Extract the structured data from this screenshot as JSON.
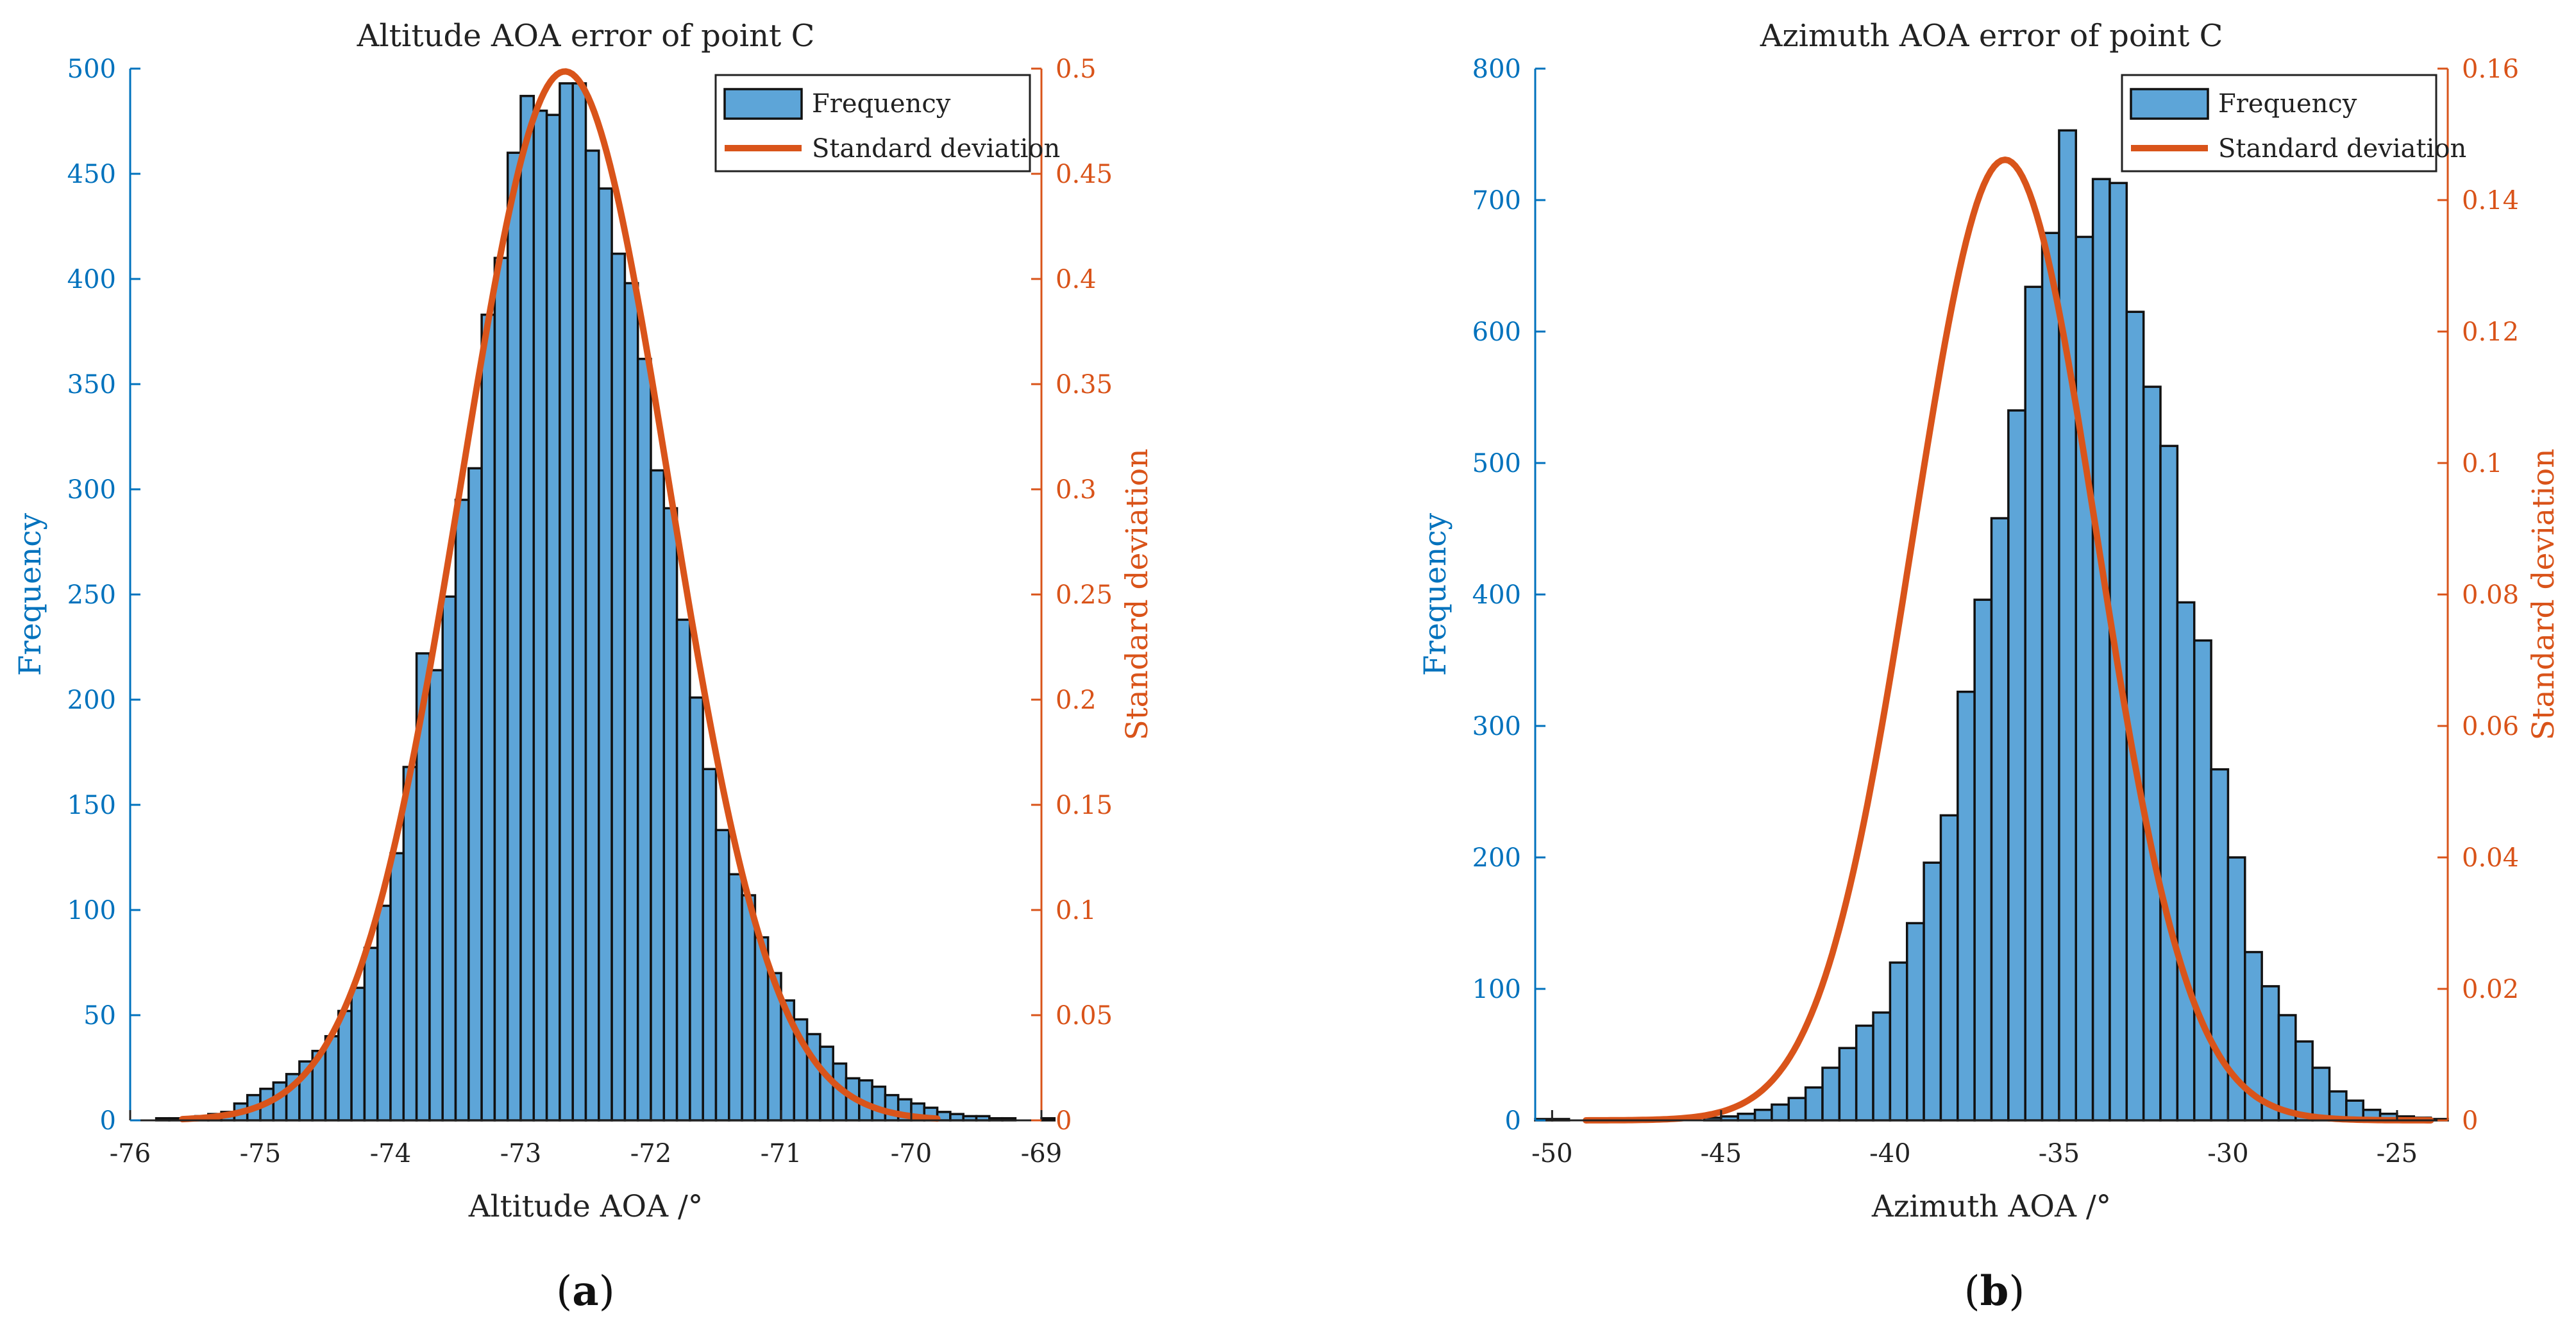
{
  "colors": {
    "bar_fill": "#5DA5D8",
    "bar_edge": "#111111",
    "line": "#D9541A",
    "left_axis": "#0072BD",
    "right_axis": "#D95319",
    "text": "#222222"
  },
  "chart_data": [
    {
      "panel_label": "a",
      "type": "bar",
      "title": "Altitude AOA error of point C",
      "xlabel": "Altitude AOA /°",
      "ylabel_left": "Frequency",
      "ylabel_right": "Standard deviation",
      "xlim": [
        -76,
        -69
      ],
      "ylim_left": [
        0,
        500
      ],
      "ylim_right": [
        0,
        0.5
      ],
      "xticks": [
        -76,
        -75,
        -74,
        -73,
        -72,
        -71,
        -70,
        -69
      ],
      "xtick_labels": [
        "-76",
        "-75",
        "-74",
        "-73",
        "-72",
        "-71",
        "-70",
        "-69"
      ],
      "yticks_left": [
        0,
        50,
        100,
        150,
        200,
        250,
        300,
        350,
        400,
        450,
        500
      ],
      "ytick_labels_left": [
        "0",
        "50",
        "100",
        "150",
        "200",
        "250",
        "300",
        "350",
        "400",
        "450",
        "500"
      ],
      "yticks_right": [
        0,
        0.05,
        0.1,
        0.15,
        0.2,
        0.25,
        0.3,
        0.35,
        0.4,
        0.45,
        0.5
      ],
      "ytick_labels_right": [
        "0",
        "0.05",
        "0.1",
        "0.15",
        "0.2",
        "0.25",
        "0.3",
        "0.35",
        "0.4",
        "0.45",
        "0.5"
      ],
      "legend": {
        "position": "top-right",
        "entries": [
          "Frequency",
          "Standard deviation"
        ]
      },
      "bins": {
        "start": -75.8,
        "width": 0.1,
        "counts": [
          1,
          1,
          1,
          2,
          3,
          4,
          8,
          12,
          15,
          18,
          22,
          28,
          33,
          40,
          52,
          63,
          82,
          102,
          127,
          168,
          222,
          214,
          249,
          295,
          310,
          383,
          410,
          460,
          487,
          480,
          478,
          493,
          493,
          461,
          443,
          412,
          398,
          362,
          309,
          291,
          238,
          201,
          167,
          138,
          117,
          107,
          87,
          70,
          57,
          48,
          41,
          35,
          27,
          20,
          19,
          16,
          12,
          10,
          8,
          6,
          4,
          3,
          2,
          2,
          1,
          1,
          0,
          0,
          1,
          0
        ]
      },
      "fit_line": {
        "name": "Standard deviation",
        "mean": -72.66,
        "sigma": 0.8,
        "x_range": [
          -75.6,
          -69.8
        ]
      }
    },
    {
      "panel_label": "b",
      "type": "bar",
      "title": "Azimuth AOA error of point C",
      "xlabel": "Azimuth AOA /°",
      "ylabel_left": "Frequency",
      "ylabel_right": "Standard deviation",
      "xlim": [
        -50.5,
        -23.5
      ],
      "ylim_left": [
        0,
        800
      ],
      "ylim_right": [
        0,
        0.16
      ],
      "xticks": [
        -50,
        -45,
        -40,
        -35,
        -30,
        -25
      ],
      "xtick_labels": [
        "-50",
        "-45",
        "-40",
        "-35",
        "-30",
        "-25"
      ],
      "yticks_left": [
        0,
        100,
        200,
        300,
        400,
        500,
        600,
        700,
        800
      ],
      "ytick_labels_left": [
        "0",
        "100",
        "200",
        "300",
        "400",
        "500",
        "600",
        "700",
        "800"
      ],
      "yticks_right": [
        0,
        0.02,
        0.04,
        0.06,
        0.08,
        0.1,
        0.12,
        0.14,
        0.16
      ],
      "ytick_labels_right": [
        "0",
        "0.02",
        "0.04",
        "0.06",
        "0.08",
        "0.1",
        "0.12",
        "0.14",
        "0.16"
      ],
      "legend": {
        "position": "top-right",
        "entries": [
          "Frequency",
          "Standard deviation"
        ]
      },
      "bins": {
        "start": -50.5,
        "width": 0.5,
        "counts": [
          1,
          1,
          0,
          0,
          0,
          0,
          0,
          0,
          0,
          0,
          2,
          3,
          5,
          8,
          12,
          17,
          25,
          40,
          55,
          72,
          82,
          120,
          150,
          196,
          232,
          326,
          396,
          458,
          540,
          634,
          675,
          753,
          672,
          716,
          713,
          615,
          558,
          513,
          394,
          365,
          267,
          200,
          128,
          102,
          80,
          60,
          40,
          22,
          15,
          8,
          5,
          3,
          2,
          1,
          0
        ]
      },
      "fit_line": {
        "name": "Standard deviation",
        "mean": -36.6,
        "sigma": 2.73,
        "x_range": [
          -49,
          -24
        ]
      }
    }
  ]
}
